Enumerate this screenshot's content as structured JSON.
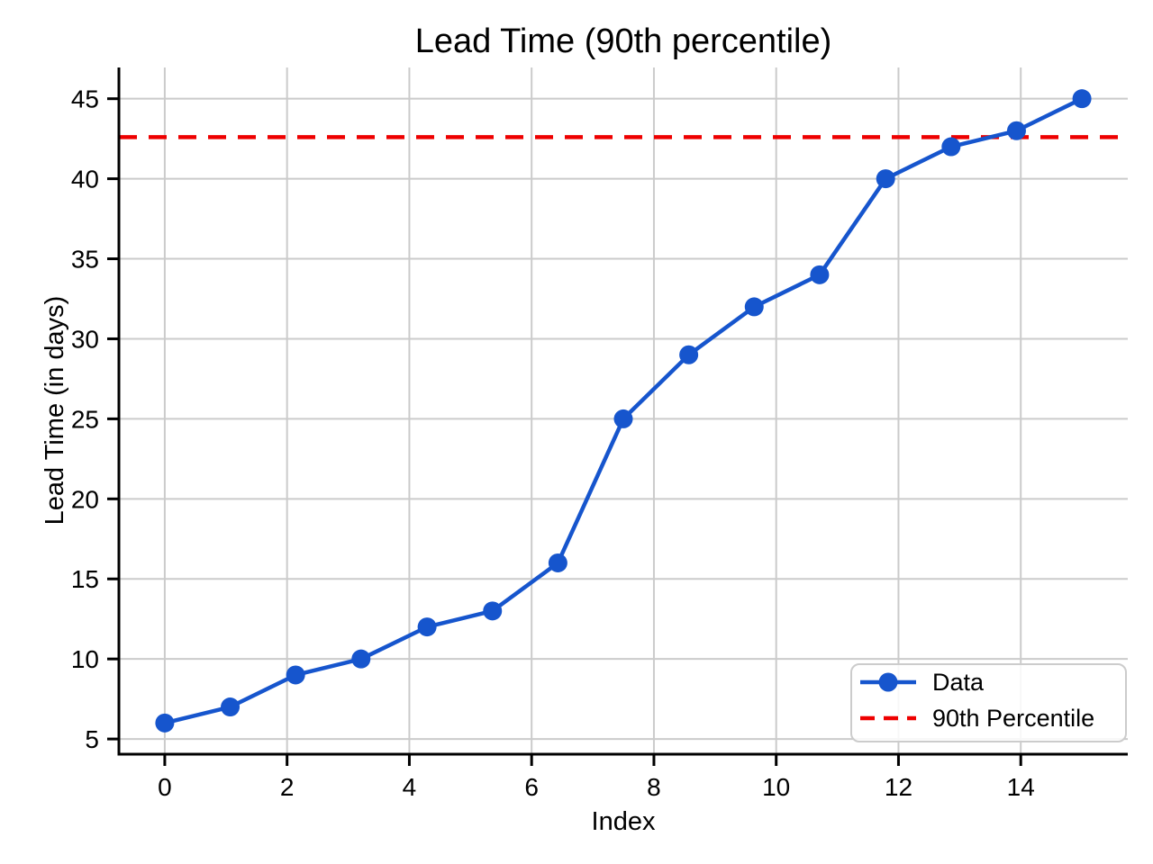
{
  "chart_data": {
    "type": "line",
    "title": "Lead Time (90th percentile)",
    "xlabel": "Index",
    "ylabel": "Lead Time (in days)",
    "x": [
      0,
      1.07,
      2.14,
      3.21,
      4.29,
      5.36,
      6.43,
      7.5,
      8.57,
      9.64,
      10.71,
      11.79,
      12.86,
      13.93,
      15
    ],
    "series": [
      {
        "name": "Data",
        "values": [
          6,
          7,
          9,
          10,
          12,
          13,
          16,
          25,
          29,
          32,
          34,
          40,
          42,
          43,
          45
        ],
        "color": "#1655CD",
        "marker": "circle"
      }
    ],
    "reference_lines": [
      {
        "name": "90th Percentile",
        "value": 42.6,
        "color": "#EE0000",
        "style": "dashed"
      }
    ],
    "x_ticks": [
      0,
      2,
      4,
      6,
      8,
      10,
      12,
      14
    ],
    "y_ticks": [
      5,
      10,
      15,
      20,
      25,
      30,
      35,
      40,
      45
    ],
    "xlim": [
      -0.75,
      15.75
    ],
    "ylim": [
      4.05,
      46.95
    ],
    "grid": true,
    "legend": {
      "position": "lower right",
      "items": [
        {
          "label": "Data"
        },
        {
          "label": "90th Percentile"
        }
      ]
    },
    "colors": {
      "grid": "#CBCBCB",
      "axis": "#000000",
      "text": "#000000",
      "background": "#FFFFFF",
      "legend_border": "#CCCCCC"
    }
  }
}
